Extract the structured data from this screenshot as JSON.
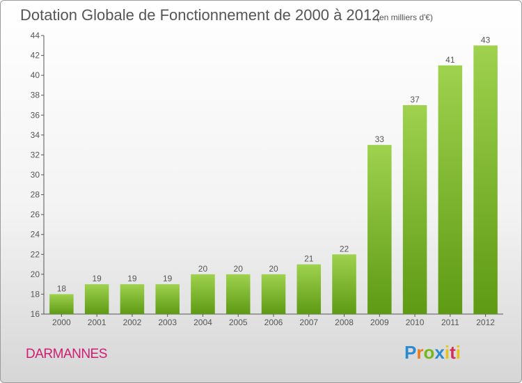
{
  "header": {
    "title": "Dotation Globale de Fonctionnement de 2000 à 2012",
    "unit": "(en milliers d'€)"
  },
  "commune": "DARMANNES",
  "logo": {
    "text": "Proxiti",
    "icon": "proxiti-logo"
  },
  "colors": {
    "bar_top": "#9fd24e",
    "bar_bottom": "#5e9a14",
    "axis": "#555555",
    "text": "#555555",
    "commune": "#d01c72"
  },
  "chart_data": {
    "type": "bar",
    "title": "Dotation Globale de Fonctionnement de 2000 à 2012",
    "subtitle": "(en milliers d'€)",
    "xlabel": "",
    "ylabel": "",
    "categories": [
      "2000",
      "2001",
      "2002",
      "2003",
      "2004",
      "2005",
      "2006",
      "2007",
      "2008",
      "2009",
      "2010",
      "2011",
      "2012"
    ],
    "values": [
      18,
      19,
      19,
      19,
      20,
      20,
      20,
      21,
      22,
      33,
      37,
      41,
      43
    ],
    "ylim": [
      16,
      44
    ],
    "yticks": [
      16,
      18,
      20,
      22,
      24,
      26,
      28,
      30,
      32,
      34,
      36,
      38,
      40,
      42,
      44
    ],
    "grid": false,
    "legend": "none"
  }
}
